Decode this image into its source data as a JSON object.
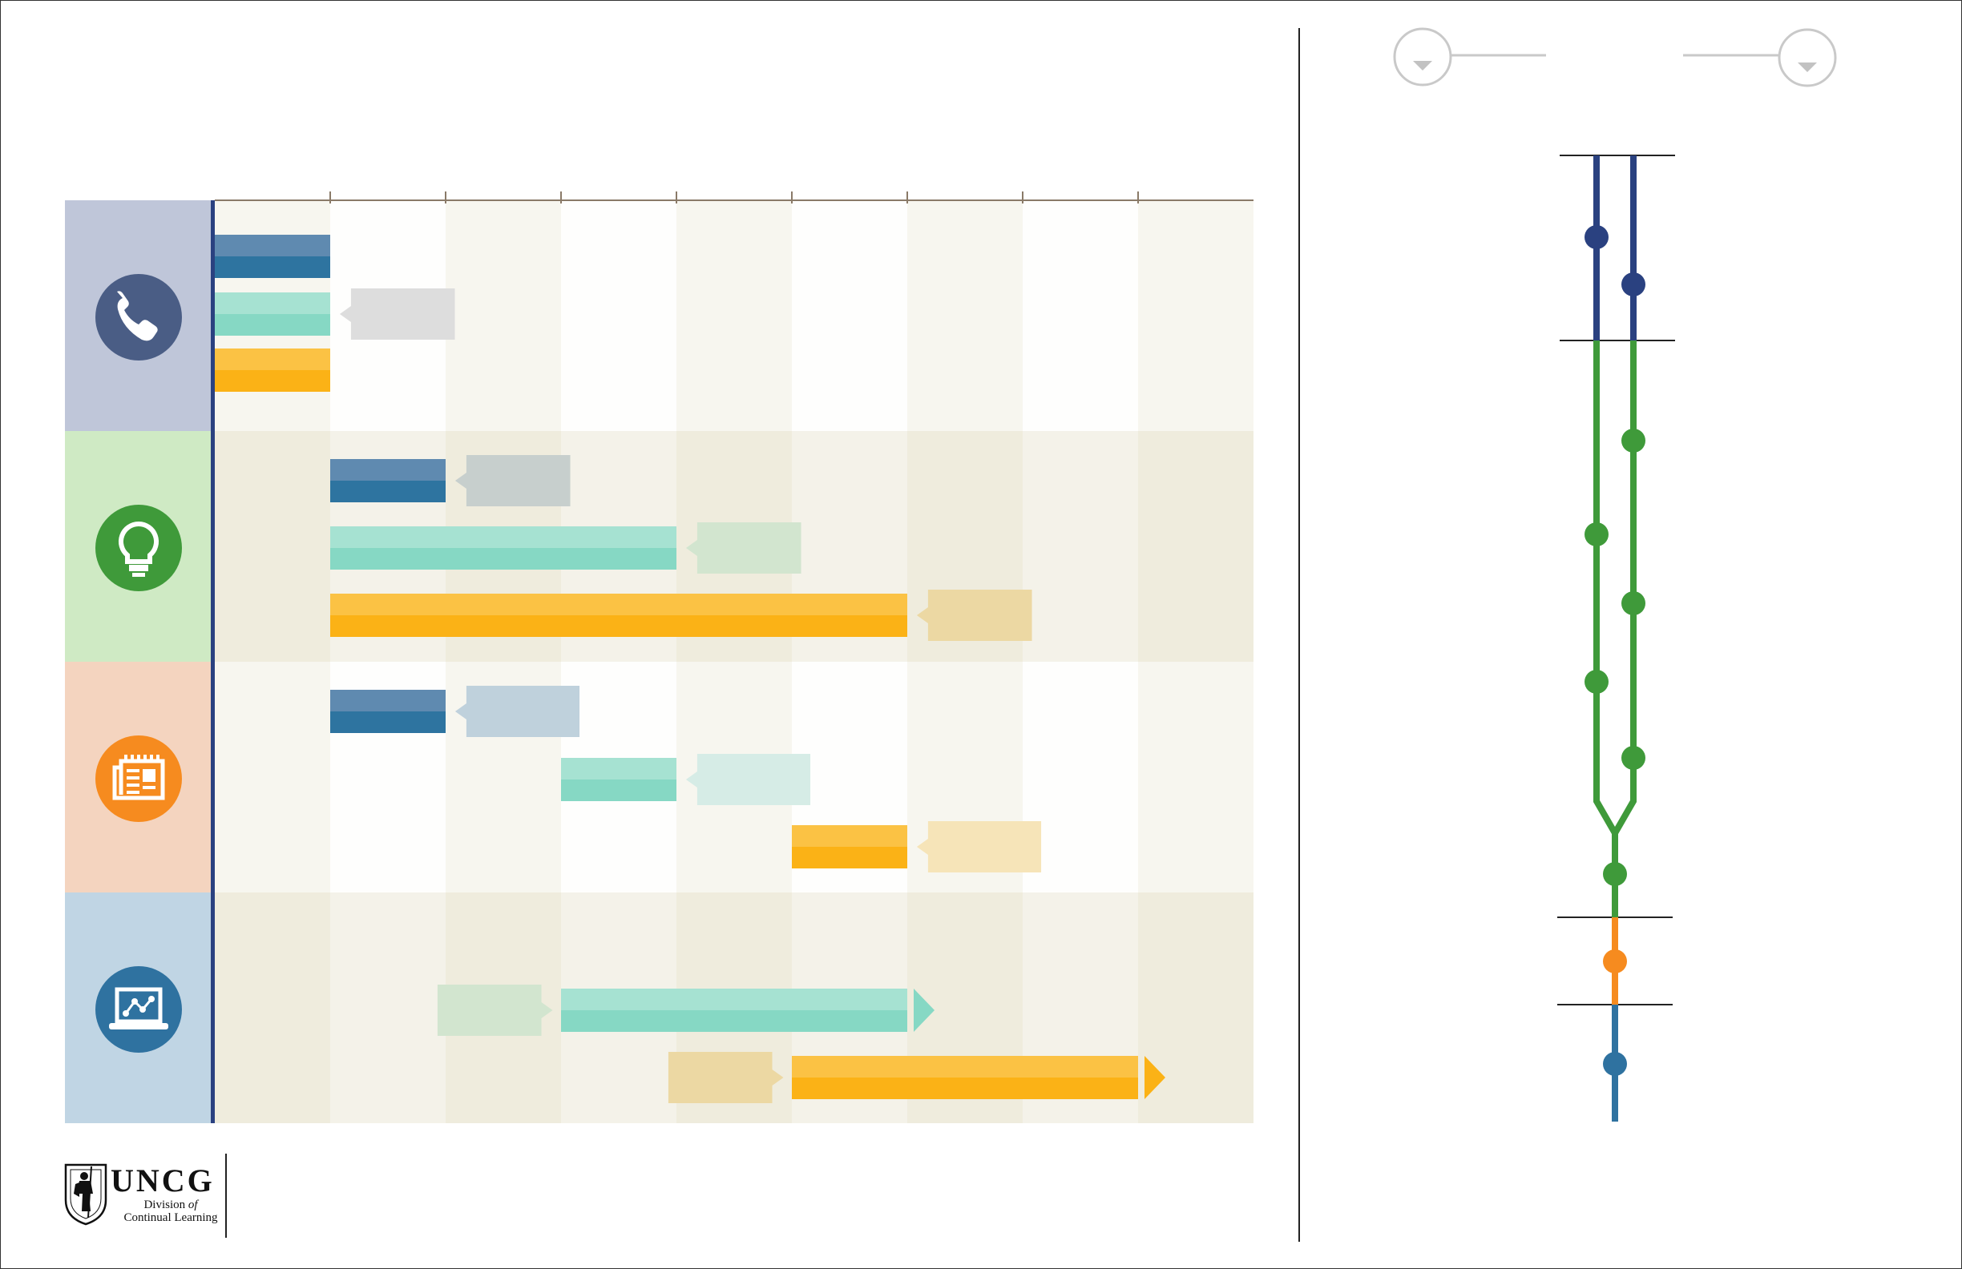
{
  "logo": {
    "name": "UNCG",
    "line1": "Division",
    "of": "of",
    "line2": "Continual Learning"
  },
  "timeline": {
    "columns": 9,
    "tick_count": 8,
    "lanes": [
      {
        "icon": "phone-icon",
        "bg": "#bfc6d9",
        "icon_color": "#4a5d85"
      },
      {
        "icon": "lightbulb-icon",
        "bg": "#cfeac4",
        "icon_color": "#3f9a3a"
      },
      {
        "icon": "newspaper-icon",
        "bg": "#f4d4bf",
        "icon_color": "#f68b1f"
      },
      {
        "icon": "presentation-icon",
        "bg": "#c0d5e4",
        "icon_color": "#2f72a0"
      }
    ],
    "bars": [
      {
        "lane": 0,
        "row": 0,
        "start": 0,
        "end": 1,
        "color": "blue"
      },
      {
        "lane": 0,
        "row": 1,
        "start": 0,
        "end": 1,
        "color": "teal",
        "callout": {
          "side": "right",
          "start": 1.18,
          "end": 2.08,
          "color": "#dddddd"
        }
      },
      {
        "lane": 0,
        "row": 2,
        "start": 0,
        "end": 1,
        "color": "yellow"
      },
      {
        "lane": 1,
        "row": 0,
        "start": 1,
        "end": 2,
        "color": "blue",
        "callout": {
          "side": "right",
          "start": 2.18,
          "end": 3.08,
          "color": "#c7cfcd"
        }
      },
      {
        "lane": 1,
        "row": 1,
        "start": 1,
        "end": 4,
        "color": "teal",
        "callout": {
          "side": "right",
          "start": 4.18,
          "end": 5.08,
          "color": "#d2e5cf"
        }
      },
      {
        "lane": 1,
        "row": 2,
        "start": 1,
        "end": 6,
        "color": "yellow",
        "callout": {
          "side": "right",
          "start": 6.18,
          "end": 7.08,
          "color": "#ecd8a3"
        }
      },
      {
        "lane": 2,
        "row": 0,
        "start": 1,
        "end": 2,
        "color": "blue",
        "callout": {
          "side": "right",
          "start": 2.18,
          "end": 3.16,
          "color": "#bfd1dc"
        }
      },
      {
        "lane": 2,
        "row": 1,
        "start": 3,
        "end": 4,
        "color": "teal",
        "callout": {
          "side": "right",
          "start": 4.18,
          "end": 5.16,
          "color": "#d6ece6"
        }
      },
      {
        "lane": 2,
        "row": 2,
        "start": 5,
        "end": 6,
        "color": "yellow",
        "callout": {
          "side": "right",
          "start": 6.18,
          "end": 7.16,
          "color": "#f6e4b8"
        }
      },
      {
        "lane": 3,
        "row": 1,
        "start": 3,
        "end": 6,
        "color": "teal",
        "arrow": true,
        "callout": {
          "side": "left",
          "start": 1.93,
          "end": 2.83,
          "color": "#d2e5cf"
        }
      },
      {
        "lane": 3,
        "row": 2,
        "start": 5,
        "end": 8,
        "color": "yellow",
        "arrow": true,
        "callout": {
          "side": "left",
          "start": 3.93,
          "end": 4.83,
          "color": "#ecd8a3"
        }
      }
    ]
  },
  "track": {
    "colors": {
      "blue": "#2a4180",
      "green": "#3f9a3a",
      "orange": "#f68b1f",
      "steel": "#2f72a0"
    }
  },
  "colors": {
    "blue_light": "#5f8ab0",
    "blue_dark": "#2e74a0",
    "teal_light": "#a6e2d2",
    "teal_dark": "#86d8c4",
    "yellow_light": "#fbc244",
    "yellow_dark": "#fbb216"
  }
}
